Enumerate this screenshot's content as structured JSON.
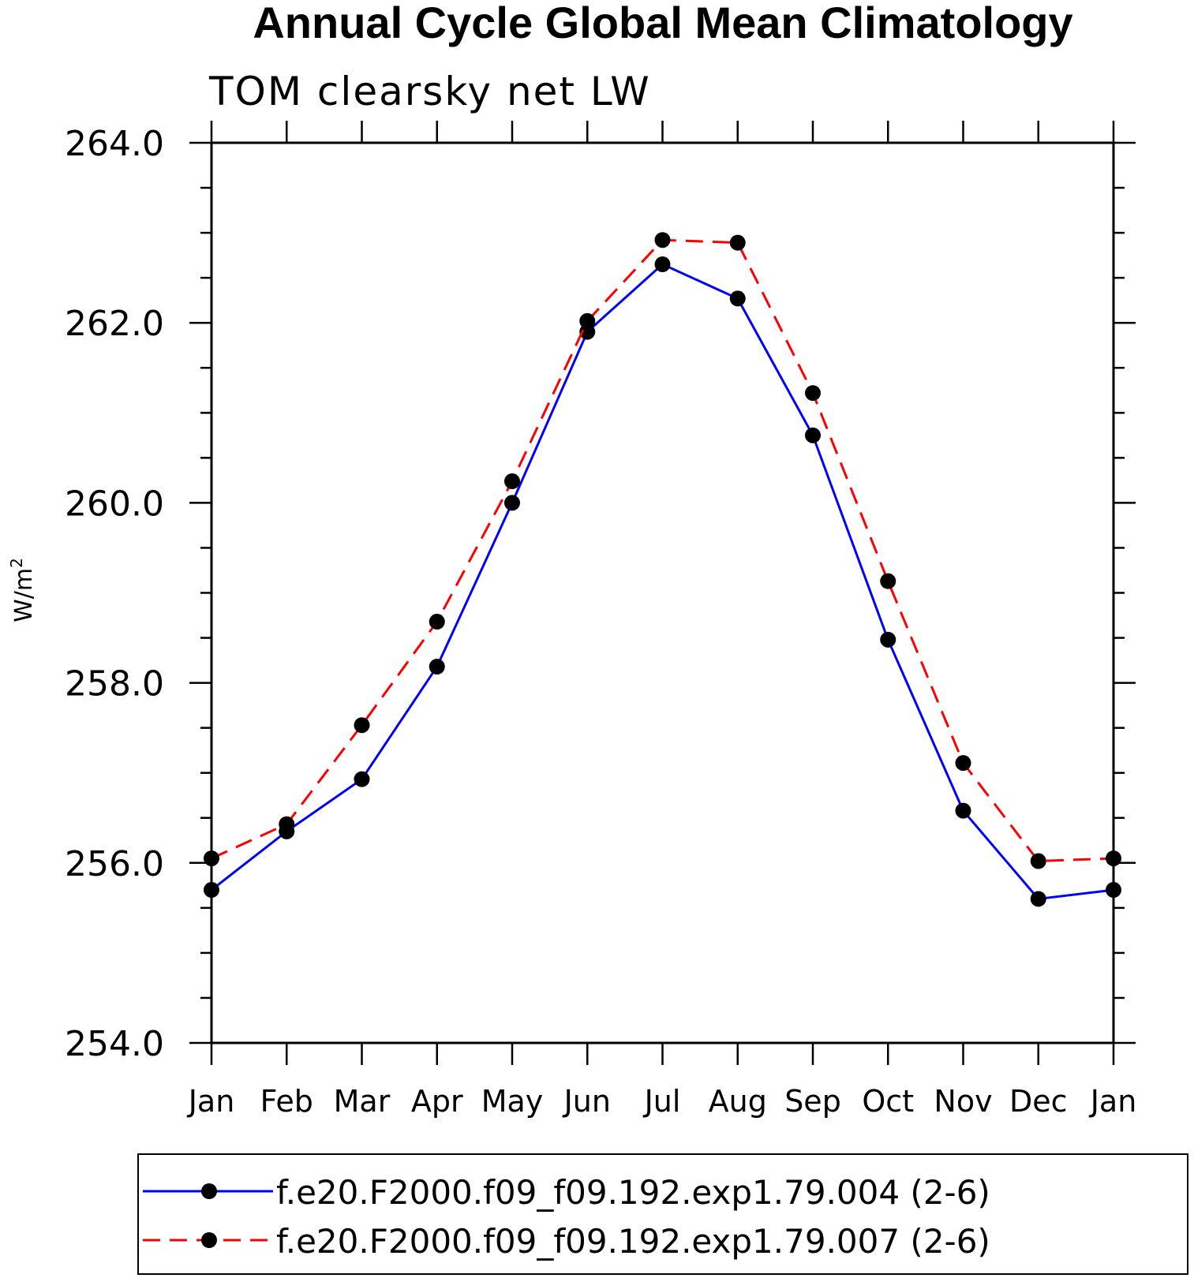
{
  "chart_data": {
    "type": "line",
    "title": "Annual Cycle Global Mean Climatology",
    "subtitle": "TOM clearsky net LW",
    "ylabel": "W/m",
    "ylabel_superscript": "2",
    "xlabel": "",
    "categories": [
      "Jan",
      "Feb",
      "Mar",
      "Apr",
      "May",
      "Jun",
      "Jul",
      "Aug",
      "Sep",
      "Oct",
      "Nov",
      "Dec",
      "Jan"
    ],
    "ylim": [
      254.0,
      264.0
    ],
    "yticks": [
      "254.0",
      "256.0",
      "258.0",
      "260.0",
      "262.0",
      "264.0"
    ],
    "grid": false,
    "legend_position": "bottom",
    "series": [
      {
        "name": "f.e20.F2000.f09_f09.192.exp1.79.004 (2-6)",
        "color": "#0000ff",
        "line_style": "solid",
        "marker": "filled-circle",
        "values": [
          255.7,
          256.35,
          256.93,
          258.18,
          260.0,
          261.9,
          262.65,
          262.27,
          260.75,
          258.48,
          256.58,
          255.6,
          255.7
        ]
      },
      {
        "name": "f.e20.F2000.f09_f09.192.exp1.79.007 (2-6)",
        "color": "#ff0000",
        "line_style": "dashed",
        "marker": "filled-circle",
        "values": [
          256.05,
          256.43,
          257.53,
          258.68,
          260.24,
          262.02,
          262.92,
          262.89,
          261.22,
          259.13,
          257.11,
          256.02,
          256.05
        ]
      }
    ]
  }
}
